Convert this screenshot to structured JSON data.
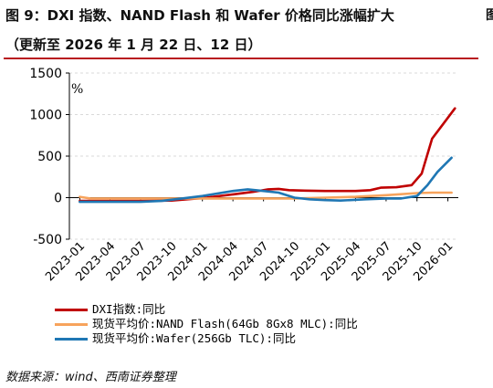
{
  "header": {
    "title_line1": "图 9：DXI 指数、NAND Flash 和 Wafer 价格同比涨幅扩大",
    "title_line2": "（更新至 2026 年 1 月 22 日、12 日）",
    "edge_fragment1": "图",
    "edge_fragment2": "（"
  },
  "footer": {
    "source": "数据来源：wind、西南证券整理"
  },
  "colors": {
    "accent_rule": "#b8191f"
  },
  "chart_data": {
    "type": "line",
    "ylabel": "%",
    "ylim": [
      -500,
      1500
    ],
    "yticks": [
      -500,
      0,
      500,
      1000,
      1500
    ],
    "ytick_labels": [
      "-500",
      "0",
      "500",
      "1000",
      "1500"
    ],
    "xlim": [
      "2022-12-01",
      "2026-02-01"
    ],
    "xticks": [
      "2023-01",
      "2023-04",
      "2023-07",
      "2023-10",
      "2024-01",
      "2024-04",
      "2024-07",
      "2024-10",
      "2025-01",
      "2025-04",
      "2025-07",
      "2025-10",
      "2026-01"
    ],
    "grid": "horizontal",
    "legend_position": "bottom",
    "series": [
      {
        "name": "DXI指数:同比",
        "color": "#c00000",
        "points": [
          [
            "2023-01-01",
            -40
          ],
          [
            "2023-04-01",
            -40
          ],
          [
            "2023-07-01",
            -40
          ],
          [
            "2023-10-01",
            -35
          ],
          [
            "2024-01-01",
            -5
          ],
          [
            "2024-04-01",
            40
          ],
          [
            "2024-06-01",
            70
          ],
          [
            "2024-07-15",
            100
          ],
          [
            "2024-08-15",
            105
          ],
          [
            "2024-09-15",
            90
          ],
          [
            "2024-11-01",
            85
          ],
          [
            "2025-01-01",
            80
          ],
          [
            "2025-04-01",
            80
          ],
          [
            "2025-05-15",
            90
          ],
          [
            "2025-06-15",
            120
          ],
          [
            "2025-08-01",
            125
          ],
          [
            "2025-09-15",
            150
          ],
          [
            "2025-10-15",
            290
          ],
          [
            "2025-11-15",
            710
          ],
          [
            "2025-12-15",
            870
          ],
          [
            "2026-01-22",
            1075
          ]
        ]
      },
      {
        "name": "现货平均价:NAND Flash(64Gb 8Gx8 MLC):同比",
        "color": "#f7a35c",
        "points": [
          [
            "2023-01-01",
            10
          ],
          [
            "2023-02-01",
            -10
          ],
          [
            "2023-04-01",
            -10
          ],
          [
            "2023-07-01",
            -10
          ],
          [
            "2023-10-01",
            -10
          ],
          [
            "2024-01-01",
            -10
          ],
          [
            "2024-04-01",
            -10
          ],
          [
            "2024-07-01",
            -10
          ],
          [
            "2024-10-01",
            -10
          ],
          [
            "2025-01-01",
            0
          ],
          [
            "2025-04-01",
            10
          ],
          [
            "2025-07-01",
            30
          ],
          [
            "2025-10-01",
            55
          ],
          [
            "2025-11-15",
            60
          ],
          [
            "2026-01-12",
            60
          ]
        ]
      },
      {
        "name": "现货平均价:Wafer(256Gb TLC):同比",
        "color": "#1f77b4",
        "points": [
          [
            "2023-01-01",
            -50
          ],
          [
            "2023-04-01",
            -50
          ],
          [
            "2023-07-01",
            -50
          ],
          [
            "2023-09-01",
            -40
          ],
          [
            "2023-11-01",
            -10
          ],
          [
            "2024-01-01",
            20
          ],
          [
            "2024-04-01",
            80
          ],
          [
            "2024-05-15",
            100
          ],
          [
            "2024-07-01",
            80
          ],
          [
            "2024-08-15",
            60
          ],
          [
            "2024-10-01",
            0
          ],
          [
            "2024-11-15",
            -20
          ],
          [
            "2025-01-01",
            -30
          ],
          [
            "2025-02-15",
            -35
          ],
          [
            "2025-03-15",
            -30
          ],
          [
            "2025-05-01",
            -20
          ],
          [
            "2025-07-01",
            -10
          ],
          [
            "2025-08-15",
            -10
          ],
          [
            "2025-10-01",
            20
          ],
          [
            "2025-11-01",
            150
          ],
          [
            "2025-12-01",
            310
          ],
          [
            "2026-01-12",
            480
          ]
        ]
      }
    ]
  }
}
